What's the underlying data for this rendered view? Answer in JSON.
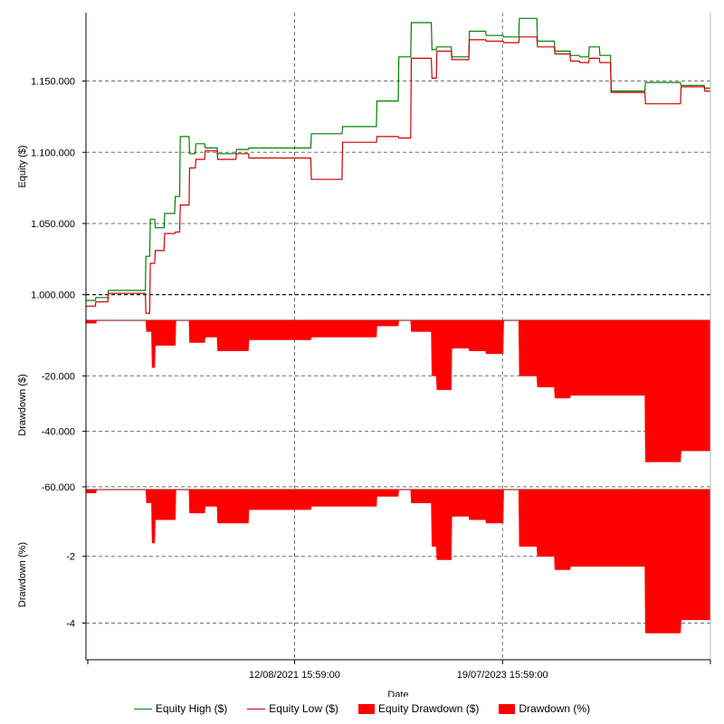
{
  "colors": {
    "equity_high": "#008000",
    "equity_low": "#d00000",
    "drawdown_fill": "#ff0000",
    "grid": "#6e6e6e",
    "baseline": "#000000"
  },
  "chart_data": [
    {
      "type": "line",
      "panel": "equity",
      "ylabel": "Equity ($)",
      "ylim": [
        982000,
        1198000
      ],
      "yticks": [
        1000000,
        1050000,
        1100000,
        1150000
      ],
      "ytick_labels": [
        "1.000.000",
        "1.050.000",
        "1.100.000",
        "1.150.000"
      ],
      "xlim": [
        0,
        100
      ],
      "baseline": 1000000,
      "series": [
        {
          "name": "Equity High ($)",
          "x": [
            0,
            1.5,
            1.6,
            3.5,
            3.6,
            9.5,
            9.6,
            10.2,
            10.3,
            11,
            11.1,
            12.5,
            12.6,
            14.2,
            14.3,
            15,
            15.1,
            16.5,
            16.6,
            17.5,
            17.6,
            19,
            19.1,
            21,
            21.1,
            24,
            24.1,
            26,
            26.1,
            36,
            36.1,
            41,
            41.1,
            46.5,
            46.6,
            50,
            50.1,
            52,
            52.1,
            55.3,
            55.4,
            56.1,
            56.2,
            58.5,
            58.6,
            61.3,
            61.4,
            64,
            64.1,
            66.8,
            66.9,
            69.3,
            69.4,
            72.2,
            72.3,
            75,
            75.1,
            77.5,
            77.6,
            79,
            79.1,
            80.5,
            80.6,
            82.2,
            82.3,
            84,
            84.1,
            89.5,
            89.6,
            95.2,
            95.3,
            99,
            99.1,
            100
          ],
          "y": [
            996000,
            996000,
            998000,
            998000,
            1003000,
            1003000,
            1027000,
            1027000,
            1053000,
            1053000,
            1047000,
            1047000,
            1057000,
            1057000,
            1069000,
            1069000,
            1111000,
            1111000,
            1099000,
            1099000,
            1106000,
            1106000,
            1103000,
            1103000,
            1099000,
            1099000,
            1102000,
            1102000,
            1103000,
            1103000,
            1113000,
            1113000,
            1118000,
            1118000,
            1136000,
            1136000,
            1167000,
            1167000,
            1191000,
            1191000,
            1172000,
            1172000,
            1174000,
            1174000,
            1167000,
            1167000,
            1185000,
            1185000,
            1182000,
            1182000,
            1181000,
            1181000,
            1194000,
            1194000,
            1178000,
            1178000,
            1171000,
            1171000,
            1168000,
            1168000,
            1167000,
            1167000,
            1174000,
            1174000,
            1168000,
            1168000,
            1143000,
            1143000,
            1149000,
            1149000,
            1147000,
            1147000,
            1145000,
            1145000
          ]
        },
        {
          "name": "Equity Low ($)",
          "x": [
            0,
            1.5,
            1.6,
            3.5,
            3.6,
            9.5,
            9.6,
            10.2,
            10.3,
            11,
            11.1,
            12.5,
            12.6,
            14.2,
            14.3,
            15,
            15.1,
            16.5,
            16.6,
            17.5,
            17.6,
            19,
            19.1,
            21,
            21.1,
            24,
            24.1,
            26,
            26.1,
            36,
            36.1,
            41,
            41.1,
            46.5,
            46.6,
            50,
            50.1,
            52,
            52.1,
            55.3,
            55.4,
            56.1,
            56.2,
            58.5,
            58.6,
            61.3,
            61.4,
            64,
            64.1,
            66.8,
            66.9,
            69.3,
            69.4,
            72.2,
            72.3,
            75,
            75.1,
            77.5,
            77.6,
            79,
            79.1,
            80.5,
            80.6,
            82.2,
            82.3,
            84,
            84.1,
            89.5,
            89.6,
            95.2,
            95.3,
            99,
            99.1,
            100
          ],
          "y": [
            992000,
            992000,
            995000,
            995000,
            1001000,
            1001000,
            987000,
            987000,
            1022000,
            1022000,
            1031000,
            1031000,
            1043000,
            1043000,
            1044000,
            1044000,
            1063000,
            1063000,
            1089000,
            1089000,
            1095000,
            1095000,
            1101000,
            1101000,
            1095000,
            1095000,
            1099000,
            1099000,
            1096000,
            1096000,
            1081000,
            1081000,
            1107000,
            1107000,
            1111000,
            1111000,
            1110000,
            1110000,
            1166000,
            1166000,
            1152000,
            1152000,
            1171000,
            1171000,
            1165000,
            1165000,
            1179000,
            1179000,
            1178000,
            1178000,
            1177000,
            1177000,
            1181000,
            1181000,
            1174000,
            1174000,
            1169000,
            1169000,
            1164000,
            1164000,
            1163000,
            1163000,
            1166000,
            1166000,
            1163000,
            1163000,
            1142000,
            1142000,
            1134000,
            1134000,
            1146000,
            1146000,
            1143000,
            1143000
          ]
        }
      ]
    },
    {
      "type": "area",
      "panel": "drawdown_dollars",
      "ylabel": "Drawdown ($)",
      "ylim": [
        -61000,
        0
      ],
      "yticks": [
        -20000,
        -40000,
        -60000
      ],
      "ytick_labels": [
        "-20.000",
        "-40.000",
        "-60.000"
      ],
      "xlim": [
        0,
        100
      ],
      "series": [
        {
          "name": "Equity Drawdown ($)",
          "x": [
            0,
            1.6,
            1.7,
            9.6,
            9.7,
            10.5,
            10.6,
            11,
            11.1,
            12.5,
            12.6,
            14.3,
            14.4,
            16.5,
            16.6,
            19,
            19.1,
            21,
            21.1,
            24,
            24.1,
            26,
            26.1,
            36,
            36.1,
            41,
            41.1,
            46.5,
            46.6,
            50,
            50.1,
            52,
            52.1,
            55.3,
            55.4,
            56.1,
            56.2,
            58.5,
            58.6,
            61.3,
            61.4,
            64,
            64.1,
            66.8,
            66.9,
            69.3,
            69.4,
            72.2,
            72.3,
            75,
            75.1,
            77.5,
            77.6,
            79,
            79.1,
            80.5,
            80.6,
            82.2,
            82.3,
            89.5,
            89.6,
            95.2,
            95.3,
            99,
            99.1,
            100
          ],
          "y": [
            -1000,
            -1000,
            0,
            0,
            -4000,
            -4000,
            -17000,
            -17000,
            -9000,
            -9000,
            -9000,
            -9000,
            0,
            0,
            -8000,
            -8000,
            -6000,
            -6000,
            -11000,
            -11000,
            -11000,
            -11000,
            -7000,
            -7000,
            -6000,
            -6000,
            -6000,
            -6000,
            -2000,
            -2000,
            0,
            0,
            -4000,
            -4000,
            -20000,
            -20000,
            -25000,
            -25000,
            -10000,
            -10000,
            -11000,
            -11000,
            -12000,
            -12000,
            0,
            0,
            -20000,
            -20000,
            -24000,
            -24000,
            -28000,
            -28000,
            -27000,
            -27000,
            -27000,
            -27000,
            -27000,
            -27000,
            -27000,
            -27000,
            -51000,
            -51000,
            -47000,
            -47000,
            -47000,
            -47000
          ]
        }
      ]
    },
    {
      "type": "area",
      "panel": "drawdown_percent",
      "ylabel": "Drawdown (%)",
      "ylim": [
        -5.1,
        0
      ],
      "yticks": [
        -2,
        -4
      ],
      "ytick_labels": [
        "-2",
        "-4"
      ],
      "xlim": [
        0,
        100
      ],
      "xticks": [
        33.4,
        66.7,
        100
      ],
      "xtick_labels": [
        "12/08/2021 15:59:00",
        "19/07/2023 15:59:00",
        ""
      ],
      "xlabel": "Date",
      "series": [
        {
          "name": "Drawdown (%)",
          "x": [
            0,
            1.6,
            1.7,
            9.6,
            9.7,
            10.5,
            10.6,
            11,
            11.1,
            12.5,
            12.6,
            14.3,
            14.4,
            16.5,
            16.6,
            19,
            19.1,
            21,
            21.1,
            24,
            24.1,
            26,
            26.1,
            36,
            36.1,
            41,
            41.1,
            46.5,
            46.6,
            50,
            50.1,
            52,
            52.1,
            55.3,
            55.4,
            56.1,
            56.2,
            58.5,
            58.6,
            61.3,
            61.4,
            64,
            64.1,
            66.8,
            66.9,
            69.3,
            69.4,
            72.2,
            72.3,
            75,
            75.1,
            77.5,
            77.6,
            79,
            79.1,
            80.5,
            80.6,
            82.2,
            82.3,
            89.5,
            89.6,
            95.2,
            95.3,
            99,
            99.1,
            100
          ],
          "y": [
            -0.1,
            -0.1,
            0,
            0,
            -0.4,
            -0.4,
            -1.6,
            -1.6,
            -0.9,
            -0.9,
            -0.9,
            -0.9,
            0,
            0,
            -0.7,
            -0.7,
            -0.5,
            -0.5,
            -1.0,
            -1.0,
            -1.0,
            -1.0,
            -0.6,
            -0.6,
            -0.5,
            -0.5,
            -0.5,
            -0.5,
            -0.2,
            -0.2,
            0,
            0,
            -0.4,
            -0.4,
            -1.7,
            -1.7,
            -2.1,
            -2.1,
            -0.8,
            -0.8,
            -0.9,
            -0.9,
            -1.0,
            -1.0,
            0,
            0,
            -1.7,
            -1.7,
            -2.0,
            -2.0,
            -2.4,
            -2.4,
            -2.3,
            -2.3,
            -2.3,
            -2.3,
            -2.3,
            -2.3,
            -2.3,
            -2.3,
            -4.3,
            -4.3,
            -3.9,
            -3.9,
            -3.9,
            -3.9
          ]
        }
      ]
    }
  ],
  "legend": [
    {
      "label": "Equity High ($)",
      "kind": "line",
      "color": "#008000"
    },
    {
      "label": "Equity Low ($)",
      "kind": "line",
      "color": "#d00000"
    },
    {
      "label": "Equity Drawdown ($)",
      "kind": "box",
      "color": "#ff0000"
    },
    {
      "label": "Drawdown (%)",
      "kind": "box",
      "color": "#ff0000"
    }
  ]
}
